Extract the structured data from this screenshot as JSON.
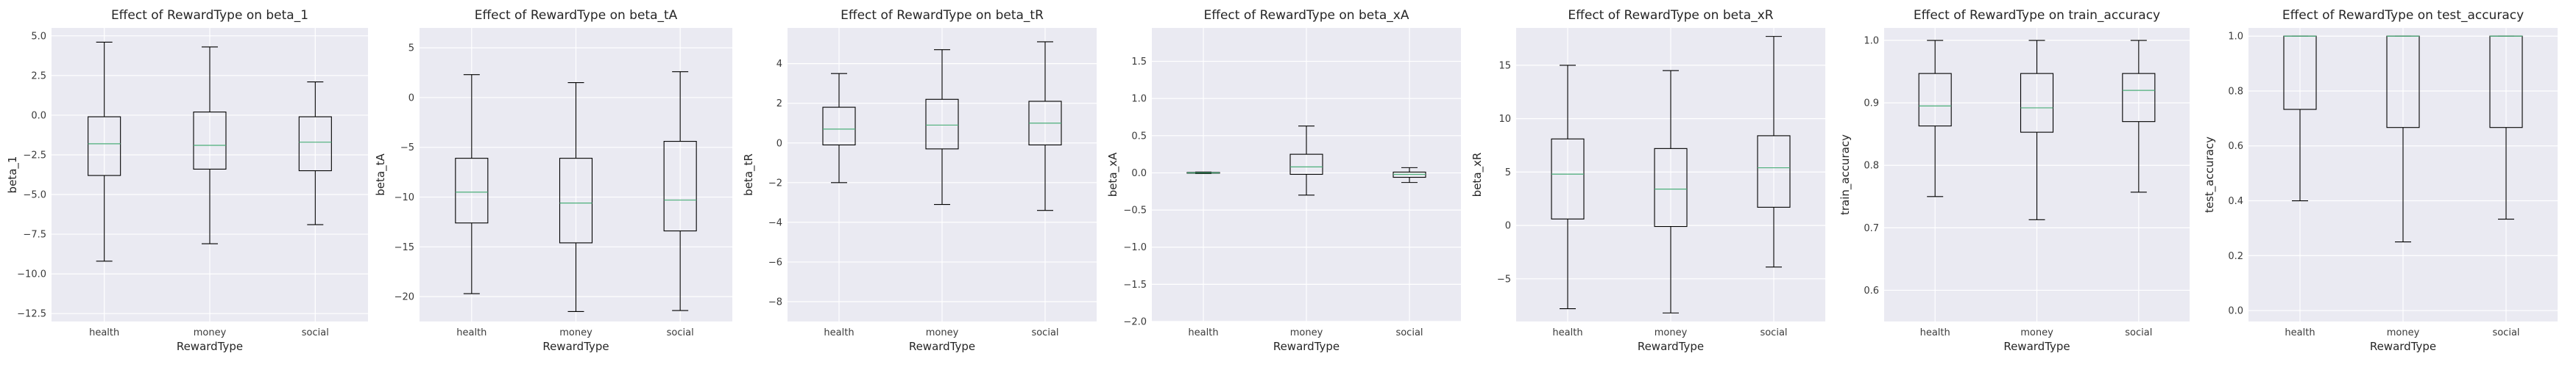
{
  "chart_data": [
    {
      "type": "box",
      "title": "Effect of RewardType on beta_1",
      "xlabel": "RewardType",
      "ylabel": "beta_1",
      "categories": [
        "health",
        "money",
        "social"
      ],
      "ylim": [
        -13,
        5.5
      ],
      "yticks": [
        -12.5,
        -10.0,
        -7.5,
        -5.0,
        -2.5,
        0.0,
        2.5,
        5.0
      ],
      "ytick_labels": [
        "−12.5",
        "−10.0",
        "−7.5",
        "−5.0",
        "−2.5",
        "0.0",
        "2.5",
        "5.0"
      ],
      "boxes": [
        {
          "whislo": -9.2,
          "q1": -3.8,
          "med": -1.8,
          "q3": -0.1,
          "whishi": 4.6
        },
        {
          "whislo": -8.1,
          "q1": -3.4,
          "med": -1.9,
          "q3": 0.2,
          "whishi": 4.3
        },
        {
          "whislo": -6.9,
          "q1": -3.5,
          "med": -1.7,
          "q3": -0.1,
          "whishi": 2.1
        }
      ]
    },
    {
      "type": "box",
      "title": "Effect of RewardType on beta_tA",
      "xlabel": "RewardType",
      "ylabel": "beta_tA",
      "categories": [
        "health",
        "money",
        "social"
      ],
      "ylim": [
        -22.5,
        7
      ],
      "yticks": [
        -20,
        -15,
        -10,
        -5,
        0,
        5
      ],
      "ytick_labels": [
        "−20",
        "−15",
        "−10",
        "−5",
        "0",
        "5"
      ],
      "boxes": [
        {
          "whislo": -19.7,
          "q1": -12.6,
          "med": -9.5,
          "q3": -6.1,
          "whishi": 2.3
        },
        {
          "whislo": -21.5,
          "q1": -14.6,
          "med": -10.6,
          "q3": -6.1,
          "whishi": 1.5
        },
        {
          "whislo": -21.4,
          "q1": -13.4,
          "med": -10.3,
          "q3": -4.4,
          "whishi": 2.6
        }
      ]
    },
    {
      "type": "box",
      "title": "Effect of RewardType on beta_tR",
      "xlabel": "RewardType",
      "ylabel": "beta_tR",
      "categories": [
        "health",
        "money",
        "social"
      ],
      "ylim": [
        -9,
        5.8
      ],
      "yticks": [
        -8,
        -6,
        -4,
        -2,
        0,
        2,
        4
      ],
      "ytick_labels": [
        "−8",
        "−6",
        "−4",
        "−2",
        "0",
        "2",
        "4"
      ],
      "boxes": [
        {
          "whislo": -2.0,
          "q1": -0.1,
          "med": 0.7,
          "q3": 1.8,
          "whishi": 3.5
        },
        {
          "whislo": -3.1,
          "q1": -0.3,
          "med": 0.9,
          "q3": 2.2,
          "whishi": 4.7
        },
        {
          "whislo": -3.4,
          "q1": -0.1,
          "med": 1.0,
          "q3": 2.1,
          "whishi": 5.1
        }
      ]
    },
    {
      "type": "box",
      "title": "Effect of RewardType on beta_xA",
      "xlabel": "RewardType",
      "ylabel": "beta_xA",
      "categories": [
        "health",
        "money",
        "social"
      ],
      "ylim": [
        -2.0,
        1.95
      ],
      "yticks": [
        -2.0,
        -1.5,
        -1.0,
        -0.5,
        0.0,
        0.5,
        1.0,
        1.5
      ],
      "ytick_labels": [
        "−2.0",
        "−1.5",
        "−1.0",
        "−0.5",
        "0.0",
        "0.5",
        "1.0",
        "1.5"
      ],
      "boxes": [
        {
          "whislo": -0.01,
          "q1": -0.005,
          "med": 0.0,
          "q3": 0.005,
          "whishi": 0.01
        },
        {
          "whislo": -0.3,
          "q1": -0.02,
          "med": 0.08,
          "q3": 0.25,
          "whishi": 0.63
        },
        {
          "whislo": -0.13,
          "q1": -0.06,
          "med": -0.02,
          "q3": 0.01,
          "whishi": 0.07
        }
      ]
    },
    {
      "type": "box",
      "title": "Effect of RewardType on beta_xR",
      "xlabel": "RewardType",
      "ylabel": "beta_xR",
      "categories": [
        "health",
        "money",
        "social"
      ],
      "ylim": [
        -9,
        18.5
      ],
      "yticks": [
        -5,
        0,
        5,
        10,
        15
      ],
      "ytick_labels": [
        "−5",
        "0",
        "5",
        "10",
        "15"
      ],
      "boxes": [
        {
          "whislo": -7.8,
          "q1": 0.6,
          "med": 4.8,
          "q3": 8.1,
          "whishi": 15.0
        },
        {
          "whislo": -8.2,
          "q1": -0.1,
          "med": 3.4,
          "q3": 7.2,
          "whishi": 14.5
        },
        {
          "whislo": -3.9,
          "q1": 1.7,
          "med": 5.4,
          "q3": 8.4,
          "whishi": 17.7
        }
      ]
    },
    {
      "type": "box",
      "title": "Effect of RewardType on train_accuracy",
      "xlabel": "RewardType",
      "ylabel": "train_accuracy",
      "categories": [
        "health",
        "money",
        "social"
      ],
      "ylim": [
        0.55,
        1.02
      ],
      "yticks": [
        0.6,
        0.7,
        0.8,
        0.9,
        1.0
      ],
      "ytick_labels": [
        "0.6",
        "0.7",
        "0.8",
        "0.9",
        "1.0"
      ],
      "boxes": [
        {
          "whislo": 0.75,
          "q1": 0.863,
          "med": 0.895,
          "q3": 0.947,
          "whishi": 1.0
        },
        {
          "whislo": 0.713,
          "q1": 0.853,
          "med": 0.892,
          "q3": 0.947,
          "whishi": 1.0
        },
        {
          "whislo": 0.757,
          "q1": 0.87,
          "med": 0.92,
          "q3": 0.947,
          "whishi": 1.0
        }
      ]
    },
    {
      "type": "box",
      "title": "Effect of RewardType on test_accuracy",
      "xlabel": "RewardType",
      "ylabel": "test_accuracy",
      "categories": [
        "health",
        "money",
        "social"
      ],
      "ylim": [
        -0.04,
        1.03
      ],
      "yticks": [
        0.0,
        0.2,
        0.4,
        0.6,
        0.8,
        1.0
      ],
      "ytick_labels": [
        "0.0",
        "0.2",
        "0.4",
        "0.6",
        "0.8",
        "1.0"
      ],
      "boxes": [
        {
          "whislo": 0.4,
          "q1": 0.733,
          "med": 1.0,
          "q3": 1.0,
          "whishi": 1.0
        },
        {
          "whislo": 0.25,
          "q1": 0.667,
          "med": 1.0,
          "q3": 1.0,
          "whishi": 1.0
        },
        {
          "whislo": 0.333,
          "q1": 0.667,
          "med": 1.0,
          "q3": 1.0,
          "whishi": 1.0
        }
      ]
    }
  ],
  "colors": {
    "axes_background": "#eaeaf2",
    "grid": "#ffffff",
    "box_edge": "#000000",
    "median": "#4caf7a"
  }
}
